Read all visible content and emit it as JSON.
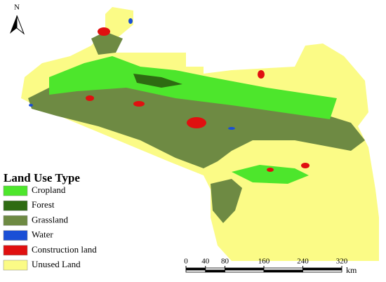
{
  "north_arrow": {
    "label": "N"
  },
  "legend": {
    "title": "Land Use Type",
    "items": [
      {
        "label": "Cropland",
        "color": "#4de62c"
      },
      {
        "label": "Forest",
        "color": "#2e6b12"
      },
      {
        "label": "Grassland",
        "color": "#6e8a43"
      },
      {
        "label": "Water",
        "color": "#1a4fd6"
      },
      {
        "label": "Construction land",
        "color": "#e01010"
      },
      {
        "label": "Unused Land",
        "color": "#fbfb86"
      }
    ]
  },
  "scale_bar": {
    "ticks": [
      0,
      40,
      80,
      160,
      240,
      320
    ],
    "unit": "km"
  }
}
